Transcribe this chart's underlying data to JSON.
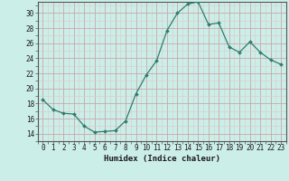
{
  "x": [
    0,
    1,
    2,
    3,
    4,
    5,
    6,
    7,
    8,
    9,
    10,
    11,
    12,
    13,
    14,
    15,
    16,
    17,
    18,
    19,
    20,
    21,
    22,
    23
  ],
  "y": [
    18.5,
    17.2,
    16.7,
    16.6,
    15.0,
    14.2,
    14.3,
    14.4,
    15.7,
    19.3,
    21.8,
    23.7,
    27.7,
    30.0,
    31.2,
    31.5,
    28.5,
    28.7,
    25.5,
    24.8,
    26.2,
    24.8,
    23.8,
    23.2
  ],
  "line_color": "#2e7d6e",
  "marker": "D",
  "marker_size": 2.0,
  "bg_color": "#cceee8",
  "grid_color_major": "#c8a8a8",
  "grid_color_minor": "#dcc8c8",
  "xlabel": "Humidex (Indice chaleur)",
  "ylim": [
    13.0,
    31.5
  ],
  "xlim": [
    -0.5,
    23.5
  ],
  "yticks": [
    14,
    16,
    18,
    20,
    22,
    24,
    26,
    28,
    30
  ],
  "xticks": [
    0,
    1,
    2,
    3,
    4,
    5,
    6,
    7,
    8,
    9,
    10,
    11,
    12,
    13,
    14,
    15,
    16,
    17,
    18,
    19,
    20,
    21,
    22,
    23
  ],
  "tick_fontsize": 5.5,
  "xlabel_fontsize": 6.5
}
